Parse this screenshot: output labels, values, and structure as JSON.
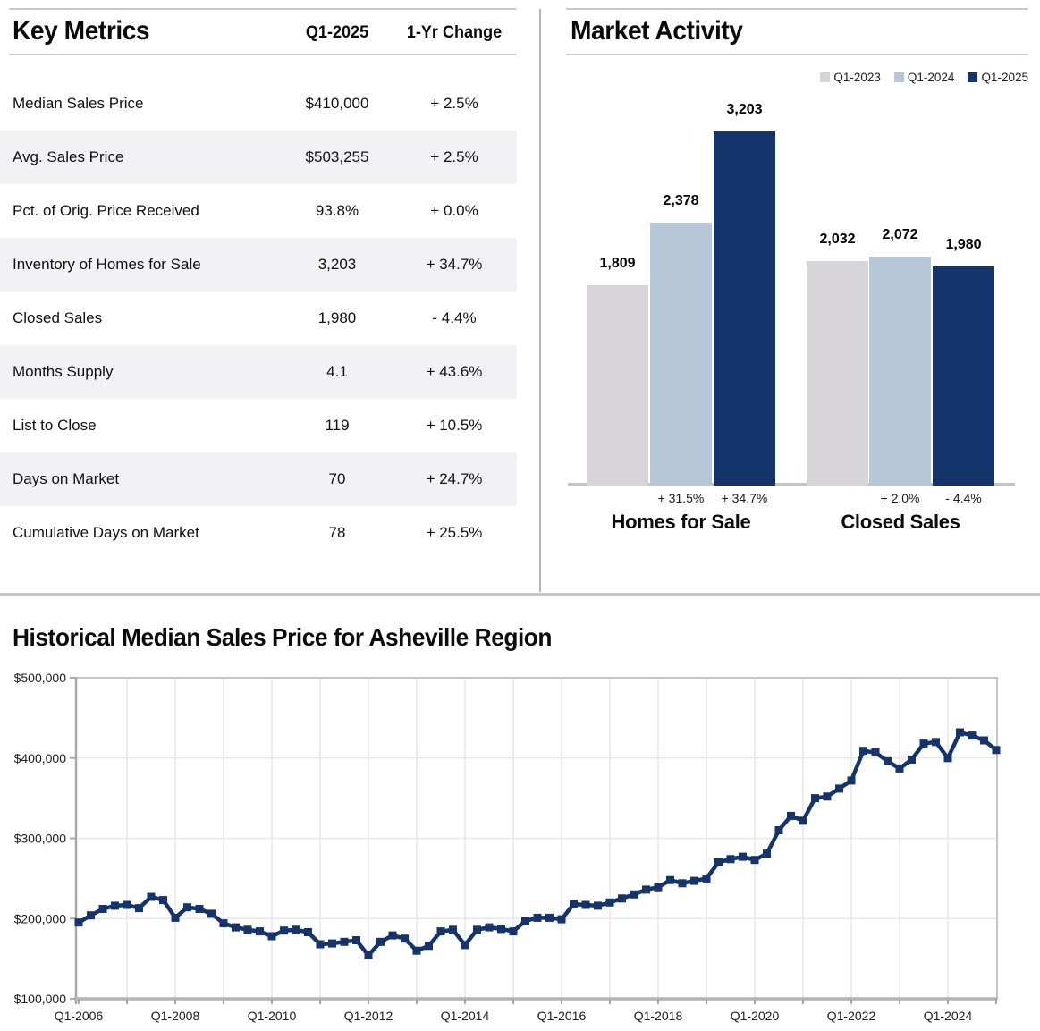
{
  "key_metrics": {
    "title": "Key Metrics",
    "col_value": "Q1-2025",
    "col_change": "1-Yr Change",
    "rows": [
      {
        "label": "Median Sales Price",
        "value": "$410,000",
        "change": "+ 2.5%"
      },
      {
        "label": "Avg. Sales Price",
        "value": "$503,255",
        "change": "+ 2.5%"
      },
      {
        "label": "Pct. of Orig. Price Received",
        "value": "93.8%",
        "change": "+ 0.0%"
      },
      {
        "label": "Inventory of Homes for Sale",
        "value": "3,203",
        "change": "+ 34.7%"
      },
      {
        "label": "Closed Sales",
        "value": "1,980",
        "change": "- 4.4%"
      },
      {
        "label": "Months Supply",
        "value": "4.1",
        "change": "+ 43.6%"
      },
      {
        "label": "List to Close",
        "value": "119",
        "change": "+ 10.5%"
      },
      {
        "label": "Days on Market",
        "value": "70",
        "change": "+ 24.7%"
      },
      {
        "label": "Cumulative Days on Market",
        "value": "78",
        "change": "+ 25.5%"
      }
    ]
  },
  "market_activity": {
    "title": "Market Activity"
  },
  "historical": {
    "title": "Historical Median Sales Price for Asheville Region"
  },
  "colors": {
    "q1_2023": "#d6d4d8",
    "q1_2024": "#b5c7d8",
    "q1_2025": "#15346c",
    "line": "#15346c"
  },
  "chart_data": [
    {
      "type": "bar",
      "title": "Market Activity",
      "legend_position": "top-right",
      "categories": [
        "Homes for Sale",
        "Closed Sales"
      ],
      "series": [
        {
          "name": "Q1-2023",
          "values": [
            1809,
            2032
          ],
          "color": "#d6d4d8"
        },
        {
          "name": "Q1-2024",
          "values": [
            2378,
            2072
          ],
          "color": "#b5c7d8"
        },
        {
          "name": "Q1-2025",
          "values": [
            3203,
            1980
          ],
          "color": "#15346c"
        }
      ],
      "bar_labels": [
        [
          "1,809",
          "2,378",
          "3,203"
        ],
        [
          "2,032",
          "2,072",
          "1,980"
        ]
      ],
      "pct_changes": [
        [
          "+ 31.5%",
          "+ 34.7%"
        ],
        [
          "+ 2.0%",
          "- 4.4%"
        ]
      ],
      "ylim": [
        0,
        3400
      ],
      "grid": false
    },
    {
      "type": "line",
      "title": "Historical Median Sales Price for Asheville Region",
      "x_start": "Q1-2006",
      "x_end": "Q1-2025",
      "frequency": "quarterly",
      "x_tick_labels": [
        "Q1-2006",
        "Q1-2008",
        "Q1-2010",
        "Q1-2012",
        "Q1-2014",
        "Q1-2016",
        "Q1-2018",
        "Q1-2020",
        "Q1-2022",
        "Q1-2024"
      ],
      "y_tick_labels": [
        "$100,000",
        "$200,000",
        "$300,000",
        "$400,000",
        "$500,000"
      ],
      "ylim": [
        100000,
        500000
      ],
      "grid": true,
      "marker": "square",
      "values": [
        195000,
        204000,
        212000,
        216000,
        217000,
        213000,
        227000,
        223000,
        201000,
        214000,
        212000,
        206000,
        194000,
        189000,
        186000,
        184000,
        178000,
        185000,
        186000,
        183000,
        168000,
        169000,
        171000,
        173000,
        154000,
        171000,
        179000,
        175000,
        160000,
        166000,
        184000,
        186000,
        167000,
        186000,
        189000,
        187000,
        184000,
        197000,
        201000,
        201000,
        199000,
        218000,
        217000,
        216000,
        220000,
        225000,
        230000,
        236000,
        239000,
        248000,
        244000,
        247000,
        250000,
        270000,
        274000,
        277000,
        273000,
        281000,
        310000,
        328000,
        322000,
        350000,
        352000,
        362000,
        372000,
        409000,
        407000,
        396000,
        387000,
        398000,
        418000,
        420000,
        400000,
        432000,
        428000,
        422000,
        410000
      ]
    }
  ]
}
